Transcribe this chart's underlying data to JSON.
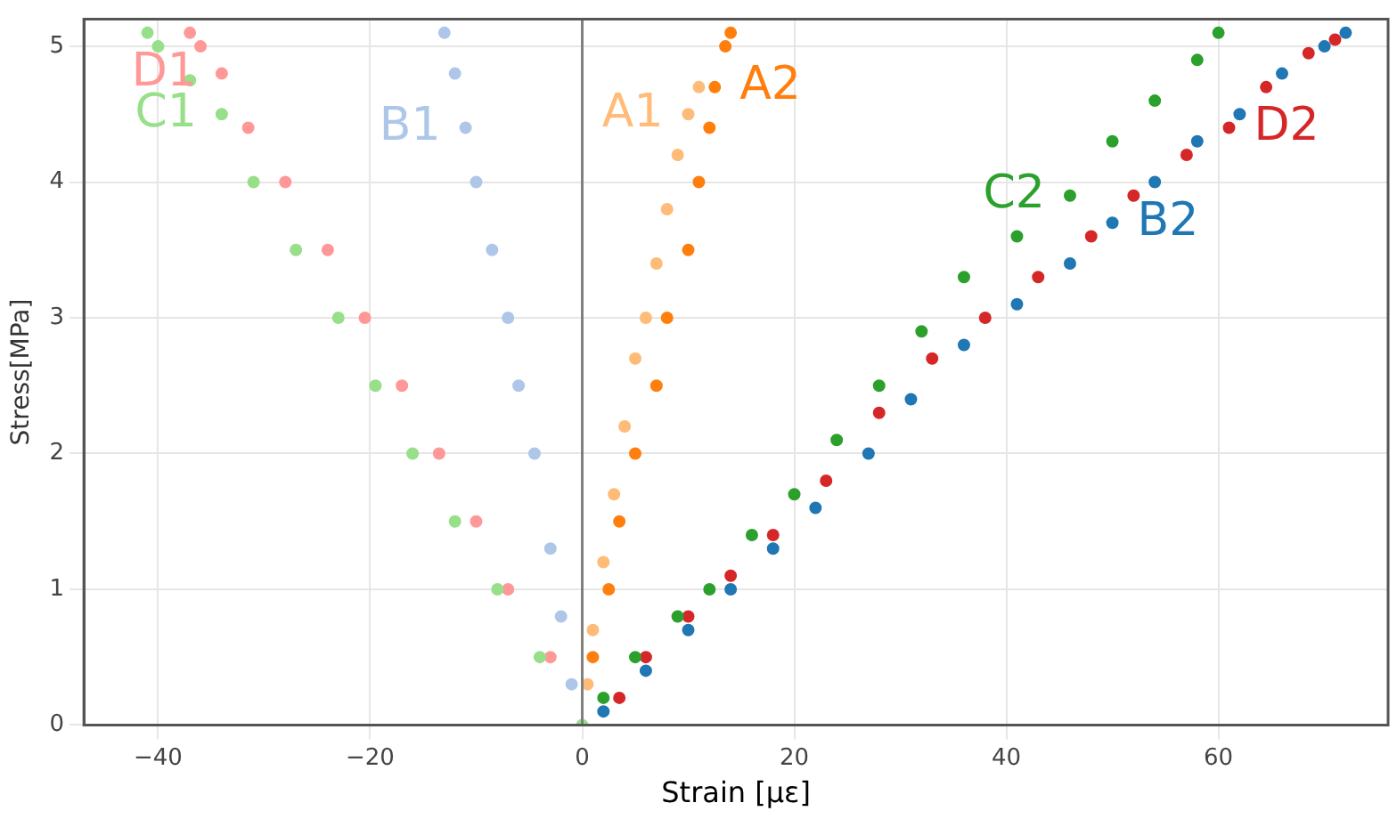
{
  "chart_data": {
    "type": "scatter",
    "xlabel": "Strain [με]",
    "ylabel": "Stress[MPa]",
    "xlim": [
      -47,
      76
    ],
    "ylim": [
      0,
      5.2
    ],
    "xticks": [
      -40,
      -20,
      0,
      20,
      40,
      60
    ],
    "yticks": [
      0,
      1,
      2,
      3,
      4,
      5
    ],
    "grid": true,
    "legend": false,
    "marker": "circle",
    "ref_lines": [
      {
        "axis": "x",
        "value": 0,
        "color": "#808080"
      }
    ],
    "series": [
      {
        "name": "A1",
        "color": "#ffbb78",
        "x": [
          0.5,
          1,
          2,
          3,
          4,
          5,
          6,
          7,
          8,
          9,
          10,
          11
        ],
        "values": [
          0.3,
          0.7,
          1.2,
          1.7,
          2.2,
          2.7,
          3,
          3.4,
          3.8,
          4.2,
          4.5,
          4.7
        ]
      },
      {
        "name": "A2",
        "color": "#ff7f0e",
        "x": [
          1,
          2.5,
          3.5,
          5,
          7,
          8,
          10,
          11,
          12,
          12.5,
          13.5,
          14
        ],
        "values": [
          0.5,
          1,
          1.5,
          2,
          2.5,
          3,
          3.5,
          4,
          4.4,
          4.7,
          5,
          5.1
        ]
      },
      {
        "name": "B1",
        "color": "#aec7e8",
        "x": [
          -1,
          -2,
          -3,
          -4.5,
          -6,
          -7,
          -8.5,
          -10,
          -11,
          -12,
          -13
        ],
        "values": [
          0.3,
          0.8,
          1.3,
          2,
          2.5,
          3,
          3.5,
          4,
          4.4,
          4.8,
          5.1
        ]
      },
      {
        "name": "B2",
        "color": "#1f77b4",
        "x": [
          2,
          6,
          10,
          14,
          18,
          22,
          27,
          31,
          36,
          41,
          46,
          50,
          54,
          58,
          62,
          66,
          70,
          72
        ],
        "values": [
          0.1,
          0.4,
          0.7,
          1,
          1.3,
          1.6,
          2,
          2.4,
          2.8,
          3.1,
          3.4,
          3.7,
          4,
          4.3,
          4.5,
          4.8,
          5,
          5.1
        ]
      },
      {
        "name": "C2",
        "color": "#2ca02c",
        "x": [
          2,
          5,
          9,
          12,
          16,
          20,
          24,
          28,
          32,
          36,
          41,
          46,
          50,
          54,
          58,
          60
        ],
        "values": [
          0.2,
          0.5,
          0.8,
          1,
          1.4,
          1.7,
          2.1,
          2.5,
          2.9,
          3.3,
          3.6,
          3.9,
          4.3,
          4.6,
          4.9,
          5.1
        ]
      },
      {
        "name": "C1",
        "color": "#98df8a",
        "x": [
          0,
          -4,
          -8,
          -12,
          -16,
          -19.5,
          -23,
          -27,
          -31,
          -34,
          -37,
          -40,
          -41
        ],
        "values": [
          0,
          0.5,
          1,
          1.5,
          2,
          2.5,
          3,
          3.5,
          4,
          4.5,
          4.75,
          5,
          5.1
        ]
      },
      {
        "name": "D1",
        "color": "#ff9896",
        "x": [
          -3,
          -7,
          -10,
          -13.5,
          -17,
          -20.5,
          -24,
          -28,
          -31.5,
          -34,
          -36,
          -37
        ],
        "values": [
          0.5,
          1,
          1.5,
          2,
          2.5,
          3,
          3.5,
          4,
          4.4,
          4.8,
          5,
          5.1
        ]
      },
      {
        "name": "D2",
        "color": "#d62728",
        "x": [
          3.5,
          6,
          10,
          14,
          18,
          23,
          28,
          33,
          38,
          43,
          48,
          52,
          57,
          61,
          64.5,
          68.5,
          71
        ],
        "values": [
          0.2,
          0.5,
          0.8,
          1.1,
          1.4,
          1.8,
          2.3,
          2.7,
          3,
          3.3,
          3.6,
          3.9,
          4.2,
          4.4,
          4.7,
          4.95,
          5.05
        ]
      }
    ]
  }
}
